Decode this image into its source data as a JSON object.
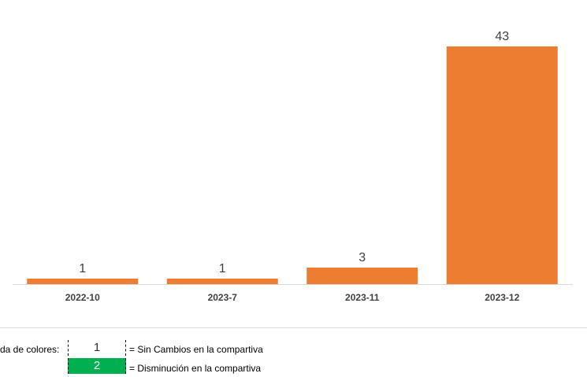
{
  "chart_data": {
    "type": "bar",
    "categories": [
      "2022-10",
      "2023-7",
      "2023-11",
      "2023-12"
    ],
    "values": [
      1,
      1,
      3,
      43
    ],
    "title": "",
    "xlabel": "",
    "ylabel": "",
    "ylim": [
      0,
      43
    ],
    "grid": false,
    "legend": "none",
    "bar_color": "#ED7D31",
    "baseline_color": "#d9d9d9"
  },
  "legend": {
    "title": "da de colores:",
    "items": [
      {
        "value": "1",
        "label": "= Sin Cambios en la compartiva",
        "color": "#ffffff"
      },
      {
        "value": "2",
        "label": "= Disminución en la compartiva",
        "color": "#00B050"
      }
    ]
  }
}
